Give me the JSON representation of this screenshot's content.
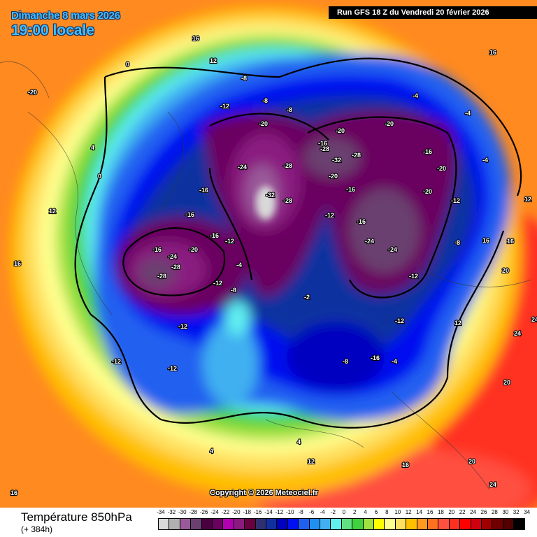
{
  "header": {
    "date": "Dimanche 8 mars 2026",
    "time": "19:00 locale",
    "run": "Run GFS 18 Z du Vendredi 20 février 2026"
  },
  "map": {
    "copyright": "Copyright © 2026 Meteociel.fr",
    "contour_labels": [
      "-8",
      "-8",
      "-8",
      "-12",
      "-20",
      "-20",
      "-16",
      "-20",
      "-4",
      "-4",
      "-24",
      "-28",
      "-32",
      "-28",
      "-20",
      "-32",
      "-28",
      "-16",
      "-12",
      "-16",
      "-28",
      "-20",
      "-16",
      "-24",
      "-20",
      "-12",
      "-16",
      "-20",
      "-24",
      "-28",
      "-28",
      "-16",
      "-12",
      "-12",
      "-8",
      "-4",
      "-2",
      "-12",
      "-16",
      "-12",
      "-8",
      "-12",
      "-12",
      "0",
      "4",
      "12",
      "16",
      "12",
      "16",
      "16",
      "20",
      "24",
      "24",
      "20",
      "20",
      "24",
      "12",
      "4",
      "4",
      "16",
      "16",
      "16",
      "0",
      "12",
      "12",
      "-4",
      "-4",
      "-8",
      "-16",
      "-12",
      "-24",
      "-16",
      "-20",
      "16",
      "12"
    ],
    "colors": {
      "outer": "#ff8a20",
      "cold_core": "#b0b0b0"
    }
  },
  "footer": {
    "variable": "Température 850hPa",
    "lead": "(+ 384h)",
    "scale_labels": [
      "-34",
      "-32",
      "-30",
      "-28",
      "-26",
      "-24",
      "-22",
      "-20",
      "-18",
      "-16",
      "-14",
      "-12",
      "-10",
      "-8",
      "-6",
      "-4",
      "-2",
      "0",
      "2",
      "4",
      "6",
      "8",
      "10",
      "12",
      "14",
      "16",
      "18",
      "20",
      "22",
      "24",
      "26",
      "28",
      "30",
      "32",
      "34"
    ],
    "scale_colors": [
      "#d9d9d9",
      "#b0b0b0",
      "#9a5a9a",
      "#6a4070",
      "#4a0040",
      "#6a0060",
      "#b000b0",
      "#8a1a80",
      "#6a0040",
      "#303070",
      "#1030a0",
      "#0000c0",
      "#0010f0",
      "#2060f0",
      "#2090f0",
      "#40b0f0",
      "#60f0f0",
      "#60e080",
      "#40d040",
      "#a0e040",
      "#ffff00",
      "#ffff90",
      "#ffe060",
      "#ffc000",
      "#ff9a20",
      "#ff7020",
      "#ff5040",
      "#ff3020",
      "#ff0000",
      "#d00010",
      "#a00000",
      "#700000",
      "#500000",
      "#000000"
    ]
  }
}
